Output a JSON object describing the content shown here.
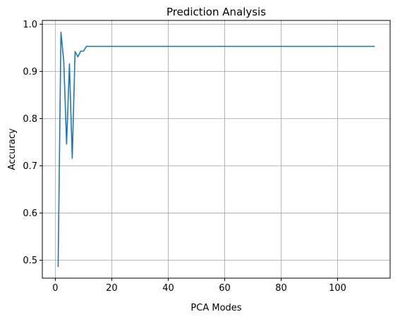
{
  "chart_data": {
    "type": "line",
    "title": "Prediction Analysis",
    "xlabel": "PCA Modes",
    "ylabel": "Accuracy",
    "xlim": [
      -4.6,
      118.6
    ],
    "ylim": [
      0.462,
      1.008
    ],
    "xticks": [
      0,
      20,
      40,
      60,
      80,
      100
    ],
    "yticks": [
      0.5,
      0.6,
      0.7,
      0.8,
      0.9,
      1.0
    ],
    "xtick_labels": [
      "0",
      "20",
      "40",
      "60",
      "80",
      "100"
    ],
    "ytick_labels": [
      "0.5",
      "0.6",
      "0.7",
      "0.8",
      "0.9",
      "1.0"
    ],
    "grid": true,
    "series": [
      {
        "color": "#1f77b4",
        "x": [
          1,
          2,
          3,
          4,
          5,
          6,
          7,
          8,
          9,
          10,
          11,
          12,
          113
        ],
        "y": [
          0.487,
          0.983,
          0.921,
          0.746,
          0.916,
          0.716,
          0.942,
          0.931,
          0.943,
          0.943,
          0.953,
          0.953,
          0.953
        ]
      }
    ]
  }
}
